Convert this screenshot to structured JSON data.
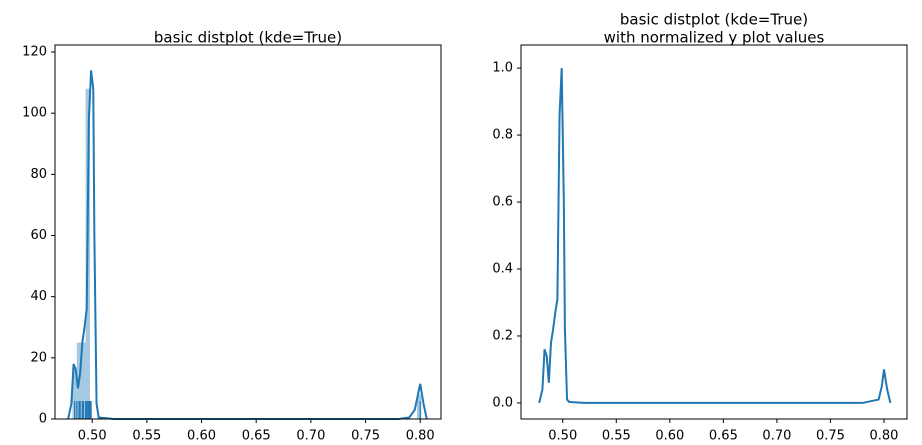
{
  "chart_data": [
    {
      "type": "histogram",
      "title": "basic distplot (kde=True)",
      "bins": [
        0.482,
        0.486,
        0.49,
        0.494,
        0.498,
        0.797,
        0.801
      ],
      "values": [
        17,
        25,
        25,
        108,
        0,
        8
      ],
      "color": "#1f77b4",
      "kde": {
        "x": [
          0.478,
          0.481,
          0.483,
          0.485,
          0.487,
          0.489,
          0.491,
          0.493,
          0.495,
          0.497,
          0.499,
          0.501,
          0.502,
          0.504,
          0.506,
          0.52,
          0.78,
          0.79,
          0.795,
          0.8,
          0.803,
          0.806
        ],
        "y": [
          0,
          5,
          18,
          16,
          10,
          15,
          25,
          30,
          36,
          98,
          114,
          108,
          60,
          5,
          0.5,
          0,
          0,
          0.5,
          3,
          11.5,
          5,
          0
        ]
      },
      "rug": [
        0.484,
        0.486,
        0.488,
        0.489,
        0.491,
        0.492,
        0.494,
        0.495,
        0.496,
        0.497,
        0.498,
        0.499,
        0.8
      ],
      "xlim": [
        0.466,
        0.819
      ],
      "ylim": [
        0,
        122.3
      ],
      "xticks": [
        {
          "value": 0.5,
          "label": "0.50"
        },
        {
          "value": 0.55,
          "label": "0.55"
        },
        {
          "value": 0.6,
          "label": "0.60"
        },
        {
          "value": 0.65,
          "label": "0.65"
        },
        {
          "value": 0.7,
          "label": "0.70"
        },
        {
          "value": 0.75,
          "label": "0.75"
        },
        {
          "value": 0.8,
          "label": "0.80"
        }
      ],
      "yticks": [
        0,
        20,
        40,
        60,
        80,
        100,
        120
      ]
    },
    {
      "type": "line",
      "title": "basic distplot (kde=True)",
      "subtitle": "with normalized y plot values",
      "color": "#1f77b4",
      "x": [
        0.478,
        0.481,
        0.483,
        0.485,
        0.487,
        0.489,
        0.491,
        0.493,
        0.495,
        0.497,
        0.499,
        0.501,
        0.502,
        0.504,
        0.506,
        0.51,
        0.52,
        0.78,
        0.795,
        0.798,
        0.8,
        0.803,
        0.806
      ],
      "values": [
        0,
        0.04,
        0.16,
        0.14,
        0.06,
        0.18,
        0.22,
        0.27,
        0.31,
        0.86,
        1.0,
        0.6,
        0.22,
        0.01,
        0.003,
        0.002,
        0,
        0,
        0.01,
        0.05,
        0.1,
        0.04,
        0
      ],
      "xlim": [
        0.461,
        0.8215
      ],
      "ylim": [
        -0.048,
        1.069
      ],
      "xticks": [
        {
          "value": 0.5,
          "label": "0.50"
        },
        {
          "value": 0.55,
          "label": "0.55"
        },
        {
          "value": 0.6,
          "label": "0.60"
        },
        {
          "value": 0.65,
          "label": "0.65"
        },
        {
          "value": 0.7,
          "label": "0.70"
        },
        {
          "value": 0.75,
          "label": "0.75"
        },
        {
          "value": 0.8,
          "label": "0.80"
        }
      ],
      "yticks": [
        {
          "value": 0,
          "label": "0.0"
        },
        {
          "value": 0.2,
          "label": "0.2"
        },
        {
          "value": 0.4,
          "label": "0.4"
        },
        {
          "value": 0.6,
          "label": "0.6"
        },
        {
          "value": 0.8,
          "label": "0.8"
        },
        {
          "value": 1,
          "label": "1.0"
        }
      ]
    }
  ]
}
